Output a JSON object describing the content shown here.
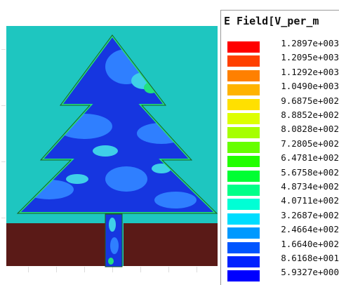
{
  "legend": {
    "title": "E Field[V_per_m",
    "entries": [
      {
        "label": "1.2897e+003",
        "color": "#ff0000"
      },
      {
        "label": "1.2095e+003",
        "color": "#ff4000"
      },
      {
        "label": "1.1292e+003",
        "color": "#ff8000"
      },
      {
        "label": "1.0490e+003",
        "color": "#ffb300"
      },
      {
        "label": "9.6875e+002",
        "color": "#ffe000"
      },
      {
        "label": "8.8852e+002",
        "color": "#ddff00"
      },
      {
        "label": "8.0828e+002",
        "color": "#a6ff00"
      },
      {
        "label": "7.2805e+002",
        "color": "#66ff00"
      },
      {
        "label": "6.4781e+002",
        "color": "#22ff00"
      },
      {
        "label": "5.6758e+002",
        "color": "#00ff33"
      },
      {
        "label": "4.8734e+002",
        "color": "#00ff88"
      },
      {
        "label": "4.0711e+002",
        "color": "#00ffd5"
      },
      {
        "label": "3.2687e+002",
        "color": "#00ddff"
      },
      {
        "label": "2.4664e+002",
        "color": "#0099ff"
      },
      {
        "label": "1.6640e+002",
        "color": "#0055ff"
      },
      {
        "label": "8.6168e+001",
        "color": "#0022ff"
      },
      {
        "label": "5.9327e+000",
        "color": "#0000ff"
      }
    ]
  },
  "colors": {
    "substrate": "#1ec6c0",
    "ground_plane": "#5a1a17",
    "antenna_base": "#1636e0",
    "antenna_mid": "#2f7fff",
    "antenna_light": "#3fd0e8",
    "antenna_edge": "#22e080",
    "outline": "#1b5e20"
  }
}
